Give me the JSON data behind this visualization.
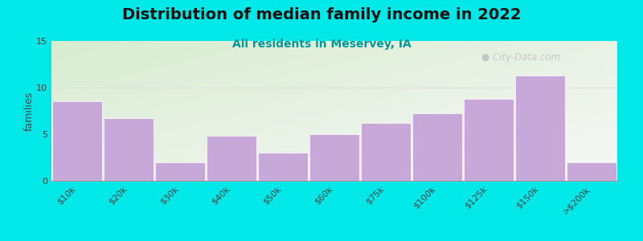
{
  "title": "Distribution of median family income in 2022",
  "subtitle": "All residents in Meservey, IA",
  "categories": [
    "$10k",
    "$20k",
    "$30k",
    "$40k",
    "$50k",
    "$60k",
    "$75k",
    "$100k",
    "$125k",
    "$150k",
    ">$200k"
  ],
  "values": [
    8.5,
    6.7,
    2.0,
    4.8,
    3.0,
    5.0,
    6.2,
    7.2,
    8.8,
    11.3,
    2.0
  ],
  "bar_color": "#c8a8d8",
  "bar_edge_color": "#d0b8e0",
  "background_outer": "#00e8e8",
  "background_inner_top_left": "#d8ecd0",
  "background_inner_bottom_right": "#f0f0f0",
  "grid_color": "#dddddd",
  "ylabel": "families",
  "ylim": [
    0,
    15
  ],
  "yticks": [
    0,
    5,
    10,
    15
  ],
  "title_fontsize": 14,
  "subtitle_fontsize": 10,
  "subtitle_color": "#009999",
  "watermark_text": "City-Data.com",
  "watermark_color": "#c0c0c0",
  "tick_label_fontsize": 8,
  "ylabel_fontsize": 9
}
